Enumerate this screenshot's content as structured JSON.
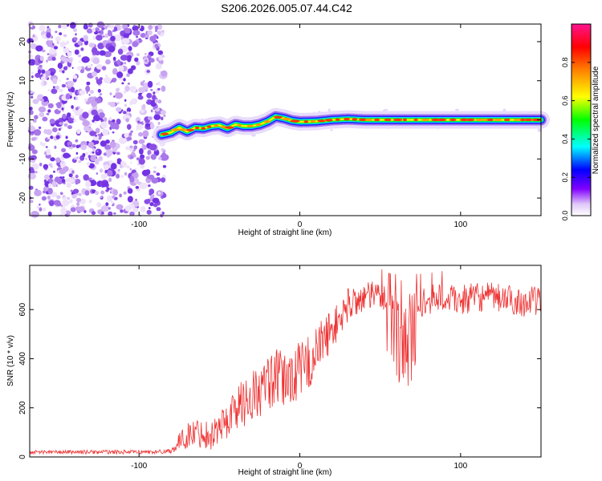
{
  "title": "S206.2026.005.07.44.C42",
  "chart_data": [
    {
      "type": "heatmap",
      "title": "S206.2026.005.07.44.C42",
      "xlabel": "Height of straight line (km)",
      "ylabel": "Frequency (Hz)",
      "xlim": [
        -168,
        150
      ],
      "ylim": [
        -24.5,
        24.5
      ],
      "x_ticks": [
        -100,
        0,
        100
      ],
      "y_ticks": [
        -20,
        -10,
        0,
        10,
        20
      ],
      "noise_region_x": [
        -168,
        -84
      ],
      "ridge": {
        "x": [
          -86,
          -80,
          -75,
          -70,
          -65,
          -60,
          -55,
          -50,
          -45,
          -40,
          -35,
          -30,
          -25,
          -20,
          -15,
          -10,
          -5,
          0,
          10,
          20,
          30,
          40,
          60,
          80,
          100,
          120,
          140,
          150
        ],
        "freq": [
          -3.8,
          -3.2,
          -2.0,
          -3.0,
          -2.0,
          -2.2,
          -1.6,
          -1.4,
          -2.2,
          -1.2,
          -1.6,
          -1.6,
          -1.2,
          -0.4,
          0.8,
          0.4,
          -0.2,
          -0.5,
          -0.4,
          0.0,
          0.2,
          0.0,
          0.0,
          0.0,
          0.0,
          0.0,
          0.0,
          0.0
        ]
      },
      "colorbar": {
        "label": "Normalized spectral amplitude",
        "range": [
          0.0,
          1.0
        ],
        "ticks": [
          "0.0",
          "0.2",
          "0.4",
          "0.6",
          "0.8"
        ]
      }
    },
    {
      "type": "line",
      "xlabel": "Height of straight line (km)",
      "ylabel": "SNR (10 * v/v)",
      "xlim": [
        -168,
        150
      ],
      "ylim": [
        0,
        780
      ],
      "x_ticks": [
        -100,
        0,
        100
      ],
      "y_ticks": [
        0,
        200,
        400,
        600
      ],
      "color": "#ee3333",
      "envelope": {
        "x": [
          -168,
          -90,
          -80,
          -72,
          -65,
          -55,
          -50,
          -45,
          -40,
          -35,
          -30,
          -25,
          -20,
          -15,
          -10,
          -5,
          0,
          5,
          10,
          15,
          20,
          25,
          30,
          40,
          50,
          55,
          60,
          65,
          70,
          80,
          90,
          100,
          110,
          120,
          130,
          140,
          150
        ],
        "mean": [
          20,
          20,
          25,
          80,
          100,
          90,
          120,
          150,
          200,
          220,
          250,
          260,
          300,
          320,
          310,
          330,
          350,
          380,
          420,
          480,
          520,
          560,
          620,
          650,
          660,
          640,
          600,
          560,
          600,
          640,
          650,
          640,
          650,
          650,
          640,
          630,
          640
        ],
        "spread": [
          8,
          8,
          10,
          50,
          60,
          60,
          70,
          80,
          90,
          100,
          110,
          110,
          110,
          120,
          120,
          120,
          120,
          120,
          110,
          100,
          80,
          80,
          70,
          60,
          60,
          60,
          80,
          80,
          80,
          60,
          60,
          60,
          60,
          60,
          60,
          60,
          60
        ]
      }
    }
  ]
}
